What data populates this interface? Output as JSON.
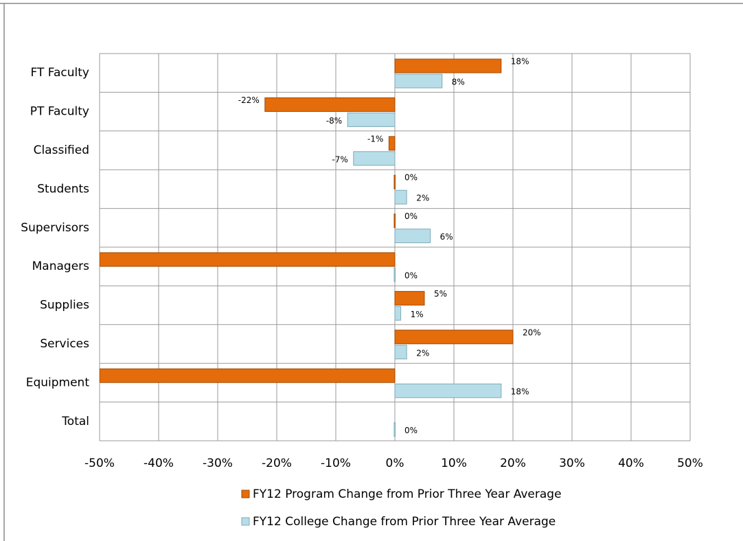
{
  "chart_data": {
    "type": "hbar",
    "categories": [
      "FT Faculty",
      "PT Faculty",
      "Classified",
      "Students",
      "Supervisors",
      "Managers",
      "Supplies",
      "Services",
      "Equipment",
      "Total"
    ],
    "series": [
      {
        "name": "FY12 Program Change from Prior Three Year Average",
        "color": "#e46c0a",
        "values": [
          18,
          -22,
          -1,
          0,
          0,
          -50,
          5,
          20,
          -50,
          null
        ],
        "value_labels": [
          "18%",
          "-22%",
          "-1%",
          "0%",
          "0%",
          null,
          "5%",
          "20%",
          null,
          null
        ]
      },
      {
        "name": "FY12 College Change from Prior Three Year Average",
        "color": "#b7dee8",
        "values": [
          8,
          -8,
          -7,
          2,
          6,
          0,
          1,
          2,
          18,
          0
        ],
        "value_labels": [
          "8%",
          "-8%",
          "-7%",
          "2%",
          "6%",
          "0%",
          "1%",
          "2%",
          "18%",
          "0%"
        ]
      }
    ],
    "xlim": [
      -50,
      50
    ],
    "xticks": [
      {
        "value": -50,
        "label": "-50%"
      },
      {
        "value": -40,
        "label": "-40%"
      },
      {
        "value": -30,
        "label": "-30%"
      },
      {
        "value": -20,
        "label": "-20%"
      },
      {
        "value": -10,
        "label": "-10%"
      },
      {
        "value": 0,
        "label": "0%"
      },
      {
        "value": 10,
        "label": "10%"
      },
      {
        "value": 20,
        "label": "20%"
      },
      {
        "value": 30,
        "label": "30%"
      },
      {
        "value": 40,
        "label": "40%"
      },
      {
        "value": 50,
        "label": "50%"
      }
    ],
    "grid": true,
    "legend": "bottom"
  }
}
